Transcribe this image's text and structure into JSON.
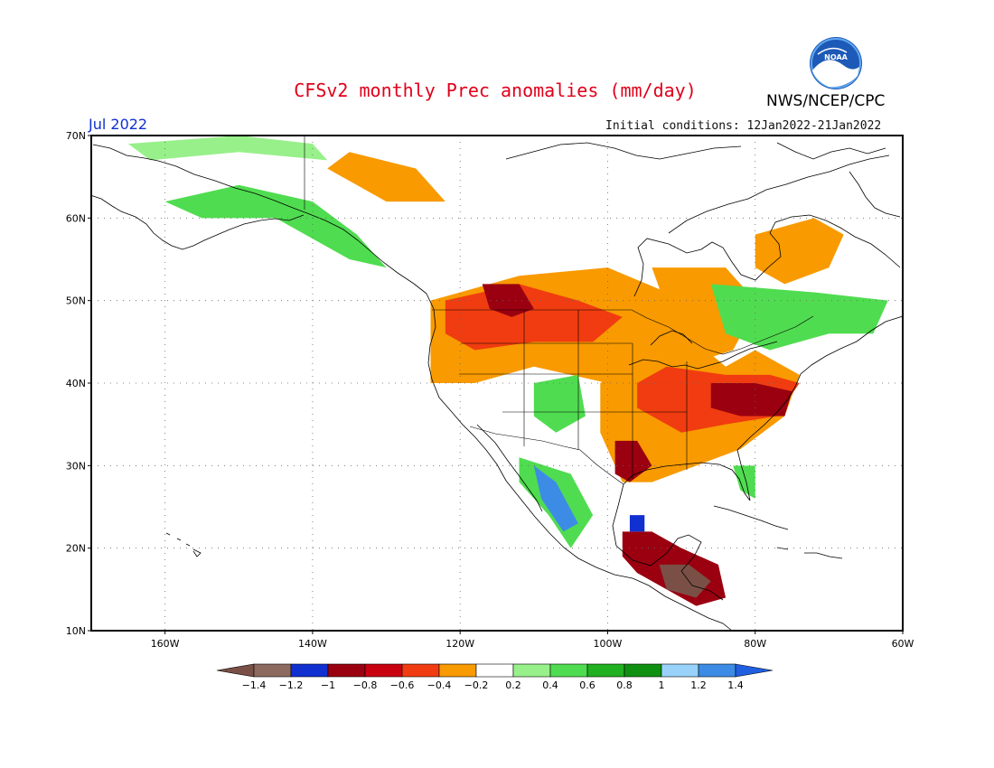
{
  "header": {
    "title": "CFSv2 monthly Prec anomalies (mm/day)",
    "agency": "NWS/NCEP/CPC",
    "logo_text": "NOAA",
    "period": "Jul 2022",
    "initial_conditions": "Initial conditions: 12Jan2022-21Jan2022"
  },
  "map": {
    "projection": "equirectangular",
    "lon_range": [
      -170,
      -60
    ],
    "lat_range": [
      10,
      70
    ],
    "lat_ticks": [
      {
        "value": 70,
        "label": "70N"
      },
      {
        "value": 60,
        "label": "60N"
      },
      {
        "value": 50,
        "label": "50N"
      },
      {
        "value": 40,
        "label": "40N"
      },
      {
        "value": 30,
        "label": "30N"
      },
      {
        "value": 20,
        "label": "20N"
      },
      {
        "value": 10,
        "label": "10N"
      }
    ],
    "lon_ticks": [
      {
        "value": -160,
        "label": "160W"
      },
      {
        "value": -140,
        "label": "140W"
      },
      {
        "value": -120,
        "label": "120W"
      },
      {
        "value": -100,
        "label": "100W"
      },
      {
        "value": -80,
        "label": "80W"
      },
      {
        "value": -60,
        "label": "60W"
      }
    ],
    "grid": "dotted"
  },
  "colorbar": {
    "labels": [
      "-1.4",
      "-1.2",
      "-1",
      "-0.8",
      "-0.6",
      "-0.4",
      "-0.2",
      "0.2",
      "0.4",
      "0.6",
      "0.8",
      "1",
      "1.2",
      "1.4"
    ],
    "colors": [
      "#7a5046",
      "#8c6a60",
      "#1030d0",
      "#9a0010",
      "#c80010",
      "#f03c10",
      "#f89a00",
      "#ffffff",
      "#98f08a",
      "#50dc50",
      "#20b020",
      "#109010",
      "#98d2fa",
      "#3c8ce6",
      "#2060e0"
    ]
  },
  "anomaly_regions": [
    {
      "color": "#f89a00",
      "lonlat": [
        [
          -124,
          50
        ],
        [
          -112,
          53
        ],
        [
          -100,
          54
        ],
        [
          -92,
          51
        ],
        [
          -85,
          52
        ],
        [
          -80,
          49
        ],
        [
          -83,
          44
        ],
        [
          -90,
          42
        ],
        [
          -100,
          40
        ],
        [
          -110,
          42
        ],
        [
          -118,
          40
        ],
        [
          -124,
          40
        ]
      ]
    },
    {
      "color": "#f03c10",
      "lonlat": [
        [
          -122,
          50
        ],
        [
          -112,
          52
        ],
        [
          -104,
          50
        ],
        [
          -98,
          48
        ],
        [
          -102,
          45
        ],
        [
          -110,
          45
        ],
        [
          -118,
          44
        ],
        [
          -122,
          46
        ]
      ]
    },
    {
      "color": "#9a0010",
      "lonlat": [
        [
          -117,
          52
        ],
        [
          -112,
          52
        ],
        [
          -110,
          49
        ],
        [
          -113,
          48
        ],
        [
          -116,
          49
        ]
      ]
    },
    {
      "color": "#f89a00",
      "lonlat": [
        [
          -98,
          45
        ],
        [
          -88,
          45
        ],
        [
          -84,
          42
        ],
        [
          -80,
          44
        ],
        [
          -74,
          41
        ],
        [
          -76,
          36
        ],
        [
          -82,
          32
        ],
        [
          -88,
          30
        ],
        [
          -94,
          28
        ],
        [
          -98,
          28
        ],
        [
          -101,
          34
        ],
        [
          -101,
          40
        ],
        [
          -98,
          42
        ]
      ]
    },
    {
      "color": "#f03c10",
      "lonlat": [
        [
          -92,
          42
        ],
        [
          -84,
          41
        ],
        [
          -78,
          41
        ],
        [
          -74,
          40
        ],
        [
          -77,
          36
        ],
        [
          -84,
          35
        ],
        [
          -90,
          34
        ],
        [
          -96,
          37
        ],
        [
          -96,
          40
        ]
      ]
    },
    {
      "color": "#9a0010",
      "lonlat": [
        [
          -86,
          40
        ],
        [
          -80,
          40
        ],
        [
          -75,
          39
        ],
        [
          -76,
          36
        ],
        [
          -82,
          36
        ],
        [
          -86,
          37
        ]
      ]
    },
    {
      "color": "#9a0010",
      "lonlat": [
        [
          -99,
          33
        ],
        [
          -96,
          33
        ],
        [
          -94,
          30
        ],
        [
          -97,
          28
        ],
        [
          -99,
          29
        ]
      ]
    },
    {
      "color": "#f89a00",
      "lonlat": [
        [
          -94,
          54
        ],
        [
          -84,
          54
        ],
        [
          -80,
          50
        ],
        [
          -86,
          48
        ],
        [
          -92,
          49
        ]
      ]
    },
    {
      "color": "#f89a00",
      "lonlat": [
        [
          -80,
          58
        ],
        [
          -72,
          60
        ],
        [
          -68,
          58
        ],
        [
          -70,
          54
        ],
        [
          -76,
          52
        ],
        [
          -80,
          54
        ]
      ]
    },
    {
      "color": "#f89a00",
      "lonlat": [
        [
          -135,
          68
        ],
        [
          -126,
          66
        ],
        [
          -122,
          62
        ],
        [
          -130,
          62
        ],
        [
          -138,
          66
        ]
      ]
    },
    {
      "color": "#50dc50",
      "lonlat": [
        [
          -86,
          52
        ],
        [
          -72,
          51
        ],
        [
          -62,
          50
        ],
        [
          -64,
          46
        ],
        [
          -70,
          46
        ],
        [
          -78,
          44
        ],
        [
          -84,
          46
        ]
      ]
    },
    {
      "color": "#50dc50",
      "lonlat": [
        [
          -160,
          62
        ],
        [
          -150,
          64
        ],
        [
          -140,
          62
        ],
        [
          -134,
          58
        ],
        [
          -130,
          54
        ],
        [
          -135,
          55
        ],
        [
          -145,
          60
        ],
        [
          -155,
          60
        ]
      ]
    },
    {
      "color": "#98f08a",
      "lonlat": [
        [
          -165,
          69
        ],
        [
          -150,
          70
        ],
        [
          -140,
          69
        ],
        [
          -138,
          67
        ],
        [
          -150,
          68
        ],
        [
          -162,
          67
        ]
      ]
    },
    {
      "color": "#50dc50",
      "lonlat": [
        [
          -112,
          31
        ],
        [
          -105,
          29
        ],
        [
          -102,
          24
        ],
        [
          -105,
          20
        ],
        [
          -108,
          24
        ],
        [
          -112,
          28
        ]
      ]
    },
    {
      "color": "#3c8ce6",
      "lonlat": [
        [
          -110,
          30
        ],
        [
          -107,
          28
        ],
        [
          -104,
          23
        ],
        [
          -106,
          22
        ],
        [
          -109,
          26
        ]
      ]
    },
    {
      "color": "#50dc50",
      "lonlat": [
        [
          -110,
          40
        ],
        [
          -104,
          41
        ],
        [
          -103,
          36
        ],
        [
          -107,
          34
        ],
        [
          -110,
          36
        ]
      ]
    },
    {
      "color": "#50dc50",
      "lonlat": [
        [
          -83,
          30
        ],
        [
          -80,
          30
        ],
        [
          -80,
          26
        ],
        [
          -82,
          27
        ]
      ]
    },
    {
      "color": "#9a0010",
      "lonlat": [
        [
          -98,
          22
        ],
        [
          -94,
          22
        ],
        [
          -90,
          20
        ],
        [
          -85,
          18
        ],
        [
          -84,
          14
        ],
        [
          -88,
          13
        ],
        [
          -92,
          15
        ],
        [
          -96,
          17
        ],
        [
          -98,
          19
        ]
      ]
    },
    {
      "color": "#7a5046",
      "lonlat": [
        [
          -93,
          18
        ],
        [
          -89,
          18
        ],
        [
          -86,
          16
        ],
        [
          -88,
          14
        ],
        [
          -92,
          15
        ]
      ]
    },
    {
      "color": "#1030d0",
      "lonlat": [
        [
          -97,
          24
        ],
        [
          -95,
          24
        ],
        [
          -95,
          22
        ],
        [
          -97,
          22
        ]
      ]
    }
  ]
}
